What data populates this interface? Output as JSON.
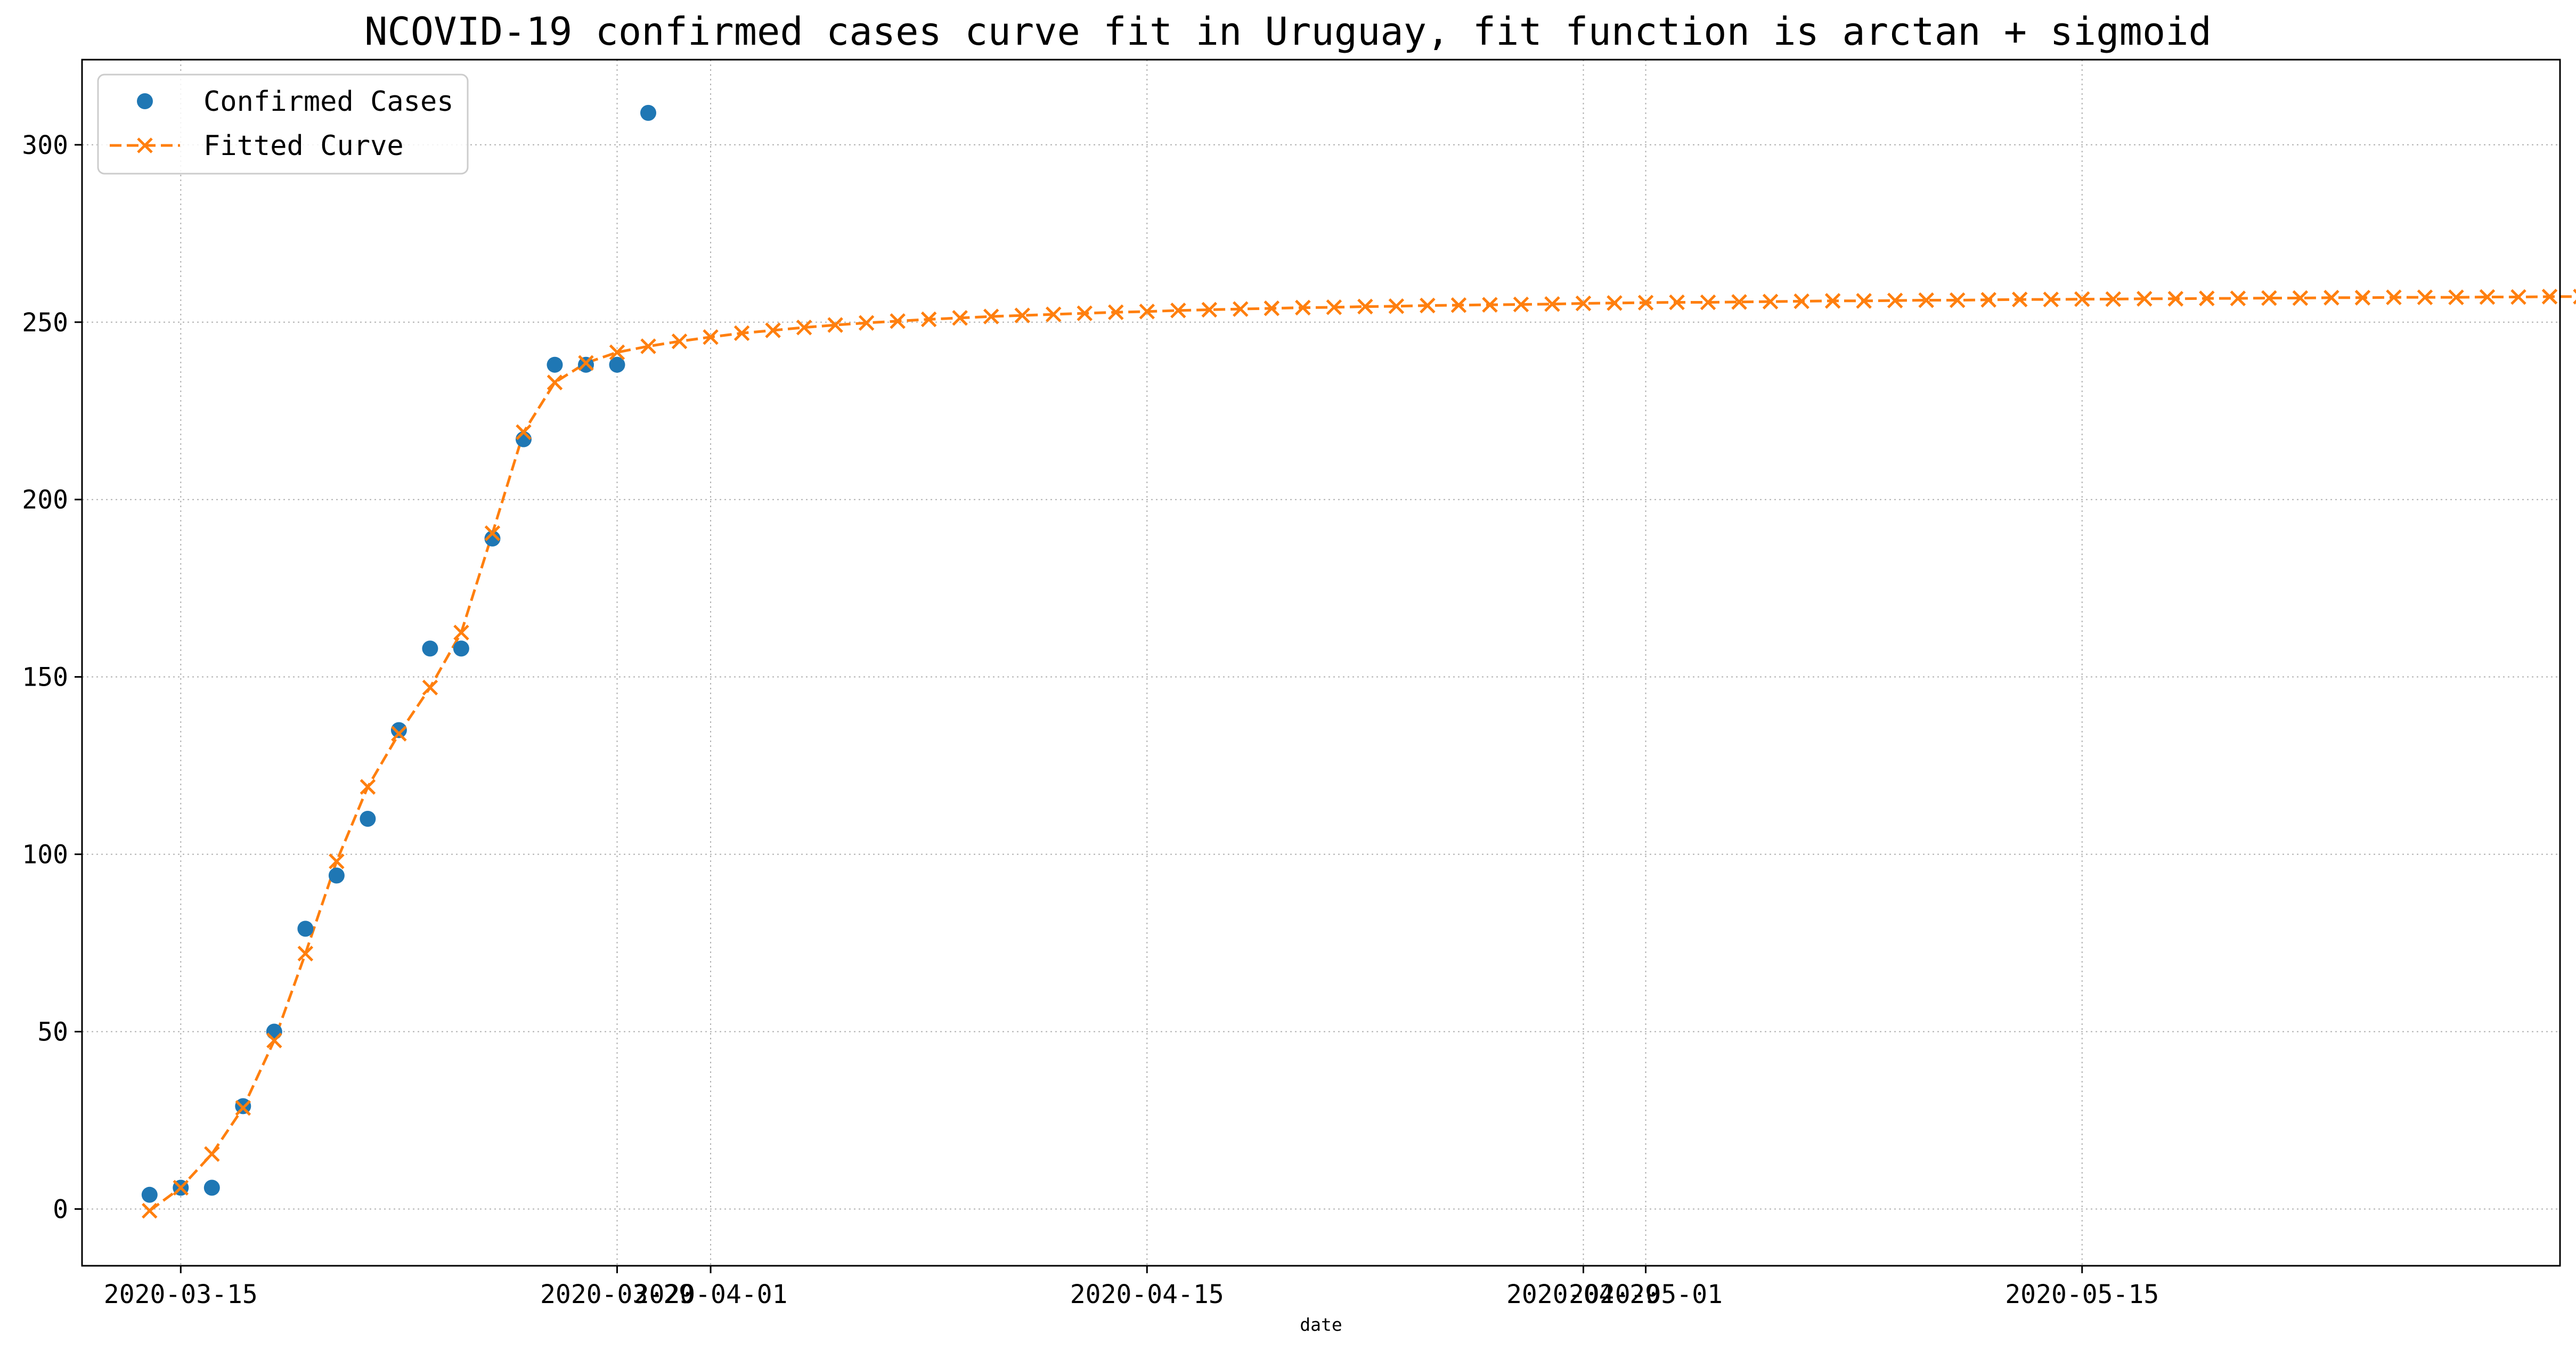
{
  "chart_data": {
    "type": "line",
    "title": "NCOVID-19 confirmed cases curve fit in Uruguay, fit function is arctan + sigmoid",
    "xlabel": "date",
    "ylabel": "",
    "ylim": [
      -16,
      324
    ],
    "xlim": [
      "2020-03-11T20:00",
      "2020-05-30T08:00"
    ],
    "yticks": [
      0,
      50,
      100,
      150,
      200,
      250,
      300
    ],
    "xticks": [
      {
        "date": "2020-03-15",
        "label": "2020-03-15"
      },
      {
        "date": "2020-03-29",
        "label": "2020-03-29"
      },
      {
        "date": "2020-04-01",
        "label": "2020-04-01"
      },
      {
        "date": "2020-04-15",
        "label": "2020-04-15"
      },
      {
        "date": "2020-04-29",
        "label": "2020-04-29"
      },
      {
        "date": "2020-05-01",
        "label": "2020-05-01"
      },
      {
        "date": "2020-05-15",
        "label": "2020-05-15"
      }
    ],
    "grid": true,
    "legend_position": "top-left",
    "series": [
      {
        "name": "Confirmed Cases",
        "style": "markers",
        "marker": "circle",
        "color": "#1f77b4",
        "start_date": "2020-03-14",
        "values": [
          4,
          6,
          6,
          29,
          50,
          79,
          94,
          110,
          135,
          158,
          158,
          189,
          217,
          238,
          238,
          238,
          309
        ]
      },
      {
        "name": "Fitted Curve",
        "style": "dashed-line-x-markers",
        "marker": "x",
        "color": "#ff7f0e",
        "start_date": "2020-03-14",
        "values": [
          -0.5,
          6,
          15.5,
          28.5,
          47.5,
          72,
          98,
          119,
          134,
          147,
          162.5,
          190.5,
          219,
          233,
          238.5,
          241.5,
          243.2,
          244.6,
          245.8,
          246.9,
          247.7,
          248.5,
          249.2,
          249.8,
          250.3,
          250.8,
          251.2,
          251.6,
          251.9,
          252.2,
          252.5,
          252.8,
          253.0,
          253.3,
          253.5,
          253.7,
          253.9,
          254.1,
          254.2,
          254.4,
          254.5,
          254.7,
          254.8,
          254.9,
          255.0,
          255.1,
          255.3,
          255.4,
          255.5,
          255.6,
          255.6,
          255.7,
          255.8,
          255.9,
          256.0,
          256.0,
          256.1,
          256.2,
          256.2,
          256.3,
          256.4,
          256.4,
          256.5,
          256.5,
          256.6,
          256.6,
          256.7,
          256.7,
          256.8,
          256.8,
          256.9,
          256.9,
          257.0,
          257.0,
          257.0,
          257.1,
          257.1,
          257.2,
          257.2,
          257.2
        ]
      }
    ]
  }
}
